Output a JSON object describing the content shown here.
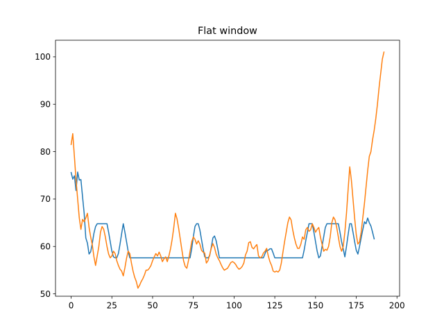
{
  "chart_data": {
    "type": "line",
    "title": "Flat window",
    "xlabel": "",
    "ylabel": "",
    "xlim": [
      -9.6,
      201.6
    ],
    "ylim": [
      49.5,
      103.5
    ],
    "xticks": [
      0,
      25,
      50,
      75,
      100,
      125,
      150,
      175,
      200
    ],
    "yticks": [
      50,
      60,
      70,
      80,
      90,
      100
    ],
    "grid": false,
    "legend": "none",
    "series": [
      {
        "color": "#1f77b4",
        "points": [
          [
            0,
            75.6
          ],
          [
            1,
            74.2
          ],
          [
            2,
            74.9
          ],
          [
            3,
            71.8
          ],
          [
            4,
            75.7
          ],
          [
            5,
            74.0
          ],
          [
            6,
            74.1
          ],
          [
            7,
            70.5
          ],
          [
            8,
            67.0
          ],
          [
            9,
            61.8
          ],
          [
            10,
            60.7
          ],
          [
            11,
            58.4
          ],
          [
            12,
            58.9
          ],
          [
            13,
            60.7
          ],
          [
            14,
            62.8
          ],
          [
            15,
            64.2
          ],
          [
            16,
            64.8
          ],
          [
            17,
            64.8
          ],
          [
            18,
            64.8
          ],
          [
            19,
            64.8
          ],
          [
            20,
            64.8
          ],
          [
            21,
            64.8
          ],
          [
            22,
            64.8
          ],
          [
            23,
            63.0
          ],
          [
            24,
            61.0
          ],
          [
            25,
            59.0
          ],
          [
            26,
            57.8
          ],
          [
            27,
            57.6
          ],
          [
            28,
            57.6
          ],
          [
            29,
            58.5
          ],
          [
            30,
            60.5
          ],
          [
            31,
            62.7
          ],
          [
            32,
            64.8
          ],
          [
            33,
            63.0
          ],
          [
            34,
            61.0
          ],
          [
            35,
            59.0
          ],
          [
            36,
            57.6
          ],
          [
            40,
            57.6
          ],
          [
            45,
            57.6
          ],
          [
            50,
            57.6
          ],
          [
            55,
            57.6
          ],
          [
            60,
            57.6
          ],
          [
            65,
            57.6
          ],
          [
            70,
            57.6
          ],
          [
            73,
            57.6
          ],
          [
            74,
            59.5
          ],
          [
            75,
            62.0
          ],
          [
            76,
            64.2
          ],
          [
            77,
            64.8
          ],
          [
            78,
            64.8
          ],
          [
            79,
            63.5
          ],
          [
            80,
            61.5
          ],
          [
            81,
            59.5
          ],
          [
            82,
            57.8
          ],
          [
            83,
            57.6
          ],
          [
            84,
            57.6
          ],
          [
            85,
            58.0
          ],
          [
            86,
            59.8
          ],
          [
            87,
            61.8
          ],
          [
            88,
            62.2
          ],
          [
            89,
            61.2
          ],
          [
            90,
            59.5
          ],
          [
            91,
            57.6
          ],
          [
            95,
            57.6
          ],
          [
            100,
            57.6
          ],
          [
            105,
            57.6
          ],
          [
            110,
            57.6
          ],
          [
            115,
            57.6
          ],
          [
            118,
            57.6
          ],
          [
            119,
            58.5
          ],
          [
            120,
            59.2
          ],
          [
            121,
            59.2
          ],
          [
            122,
            59.5
          ],
          [
            123,
            59.5
          ],
          [
            124,
            58.6
          ],
          [
            125,
            57.6
          ],
          [
            130,
            57.6
          ],
          [
            135,
            57.6
          ],
          [
            140,
            57.6
          ],
          [
            142,
            57.6
          ],
          [
            143,
            59.2
          ],
          [
            144,
            61.2
          ],
          [
            145,
            63.0
          ],
          [
            146,
            64.8
          ],
          [
            147,
            64.8
          ],
          [
            148,
            64.8
          ],
          [
            149,
            63.0
          ],
          [
            150,
            61.0
          ],
          [
            151,
            59.0
          ],
          [
            152,
            57.6
          ],
          [
            153,
            58.0
          ],
          [
            154,
            60.0
          ],
          [
            155,
            62.0
          ],
          [
            156,
            64.0
          ],
          [
            157,
            64.8
          ],
          [
            158,
            64.8
          ],
          [
            159,
            64.8
          ],
          [
            160,
            64.8
          ],
          [
            161,
            64.8
          ],
          [
            162,
            64.8
          ],
          [
            163,
            64.8
          ],
          [
            164,
            64.8
          ],
          [
            165,
            63.0
          ],
          [
            166,
            61.0
          ],
          [
            167,
            59.5
          ],
          [
            168,
            57.8
          ],
          [
            169,
            60.0
          ],
          [
            170,
            62.5
          ],
          [
            171,
            64.8
          ],
          [
            172,
            64.8
          ],
          [
            173,
            63.0
          ],
          [
            174,
            61.0
          ],
          [
            175,
            59.2
          ],
          [
            176,
            58.4
          ],
          [
            177,
            60.0
          ],
          [
            178,
            61.8
          ],
          [
            179,
            63.5
          ],
          [
            180,
            65.2
          ],
          [
            181,
            64.8
          ],
          [
            182,
            66.0
          ],
          [
            183,
            65.0
          ],
          [
            184,
            64.3
          ],
          [
            185,
            63.0
          ],
          [
            186,
            61.6
          ]
        ]
      },
      {
        "color": "#ff7f0e",
        "points": [
          [
            0,
            81.5
          ],
          [
            1,
            83.8
          ],
          [
            2,
            79.0
          ],
          [
            3,
            74.0
          ],
          [
            4,
            70.0
          ],
          [
            5,
            66.0
          ],
          [
            6,
            63.6
          ],
          [
            7,
            65.7
          ],
          [
            8,
            65.2
          ],
          [
            9,
            66.0
          ],
          [
            10,
            67.0
          ],
          [
            11,
            64.0
          ],
          [
            12,
            62.0
          ],
          [
            13,
            60.3
          ],
          [
            14,
            57.8
          ],
          [
            15,
            56.0
          ],
          [
            16,
            58.0
          ],
          [
            17,
            60.0
          ],
          [
            18,
            63.0
          ],
          [
            19,
            64.2
          ],
          [
            20,
            63.6
          ],
          [
            21,
            62.0
          ],
          [
            22,
            60.0
          ],
          [
            23,
            58.4
          ],
          [
            24,
            57.6
          ],
          [
            25,
            58.0
          ],
          [
            26,
            59.0
          ],
          [
            27,
            58.5
          ],
          [
            28,
            57.0
          ],
          [
            29,
            56.0
          ],
          [
            30,
            55.2
          ],
          [
            31,
            54.8
          ],
          [
            32,
            53.8
          ],
          [
            33,
            55.5
          ],
          [
            34,
            57.5
          ],
          [
            35,
            59.0
          ],
          [
            36,
            58.5
          ],
          [
            37,
            56.5
          ],
          [
            38,
            54.8
          ],
          [
            39,
            53.5
          ],
          [
            40,
            52.6
          ],
          [
            41,
            51.2
          ],
          [
            42,
            51.8
          ],
          [
            43,
            52.6
          ],
          [
            44,
            53.2
          ],
          [
            45,
            54.0
          ],
          [
            46,
            55.0
          ],
          [
            47,
            55.0
          ],
          [
            48,
            55.4
          ],
          [
            49,
            56.0
          ],
          [
            50,
            57.0
          ],
          [
            51,
            57.8
          ],
          [
            52,
            58.5
          ],
          [
            53,
            58.0
          ],
          [
            54,
            58.8
          ],
          [
            55,
            58.0
          ],
          [
            56,
            56.8
          ],
          [
            57,
            57.4
          ],
          [
            58,
            57.8
          ],
          [
            59,
            56.8
          ],
          [
            60,
            58.0
          ],
          [
            61,
            59.5
          ],
          [
            62,
            61.5
          ],
          [
            63,
            64.0
          ],
          [
            64,
            67.0
          ],
          [
            65,
            65.8
          ],
          [
            66,
            63.8
          ],
          [
            67,
            61.5
          ],
          [
            68,
            59.2
          ],
          [
            69,
            57.0
          ],
          [
            70,
            55.8
          ],
          [
            71,
            55.4
          ],
          [
            72,
            57.0
          ],
          [
            73,
            59.0
          ],
          [
            74,
            61.0
          ],
          [
            75,
            62.0
          ],
          [
            76,
            61.5
          ],
          [
            77,
            60.5
          ],
          [
            78,
            61.2
          ],
          [
            79,
            60.5
          ],
          [
            80,
            59.2
          ],
          [
            81,
            58.8
          ],
          [
            82,
            58.6
          ],
          [
            83,
            56.5
          ],
          [
            84,
            57.0
          ],
          [
            85,
            58.2
          ],
          [
            86,
            59.6
          ],
          [
            87,
            60.6
          ],
          [
            88,
            59.8
          ],
          [
            89,
            58.4
          ],
          [
            90,
            57.6
          ],
          [
            91,
            57.0
          ],
          [
            92,
            56.2
          ],
          [
            93,
            55.5
          ],
          [
            94,
            55.0
          ],
          [
            95,
            55.2
          ],
          [
            96,
            55.4
          ],
          [
            97,
            56.0
          ],
          [
            98,
            56.6
          ],
          [
            99,
            56.8
          ],
          [
            100,
            56.6
          ],
          [
            101,
            56.2
          ],
          [
            102,
            55.6
          ],
          [
            103,
            55.2
          ],
          [
            104,
            55.4
          ],
          [
            105,
            55.8
          ],
          [
            106,
            56.5
          ],
          [
            107,
            58.2
          ],
          [
            108,
            59.0
          ],
          [
            109,
            60.8
          ],
          [
            110,
            61.0
          ],
          [
            111,
            59.8
          ],
          [
            112,
            59.5
          ],
          [
            113,
            60.0
          ],
          [
            114,
            60.4
          ],
          [
            115,
            58.0
          ],
          [
            116,
            57.6
          ],
          [
            117,
            57.8
          ],
          [
            118,
            58.6
          ],
          [
            119,
            59.0
          ],
          [
            120,
            59.6
          ],
          [
            121,
            58.0
          ],
          [
            122,
            56.8
          ],
          [
            123,
            56.0
          ],
          [
            124,
            54.8
          ],
          [
            125,
            54.6
          ],
          [
            126,
            54.8
          ],
          [
            127,
            54.6
          ],
          [
            128,
            55.0
          ],
          [
            129,
            56.5
          ],
          [
            130,
            58.8
          ],
          [
            131,
            61.0
          ],
          [
            132,
            63.0
          ],
          [
            133,
            65.0
          ],
          [
            134,
            66.2
          ],
          [
            135,
            65.6
          ],
          [
            136,
            63.5
          ],
          [
            137,
            61.8
          ],
          [
            138,
            60.5
          ],
          [
            139,
            59.6
          ],
          [
            140,
            59.6
          ],
          [
            141,
            60.5
          ],
          [
            142,
            62.0
          ],
          [
            143,
            61.5
          ],
          [
            144,
            63.5
          ],
          [
            145,
            64.0
          ],
          [
            146,
            63.2
          ],
          [
            147,
            63.5
          ],
          [
            148,
            64.8
          ],
          [
            149,
            64.0
          ],
          [
            150,
            63.0
          ],
          [
            151,
            63.6
          ],
          [
            152,
            64.0
          ],
          [
            153,
            62.0
          ],
          [
            154,
            60.5
          ],
          [
            155,
            59.0
          ],
          [
            156,
            59.4
          ],
          [
            157,
            59.2
          ],
          [
            158,
            60.0
          ],
          [
            159,
            62.0
          ],
          [
            160,
            65.0
          ],
          [
            161,
            66.2
          ],
          [
            162,
            65.6
          ],
          [
            163,
            64.0
          ],
          [
            164,
            62.0
          ],
          [
            165,
            60.0
          ],
          [
            166,
            59.0
          ],
          [
            167,
            60.0
          ],
          [
            168,
            63.0
          ],
          [
            169,
            67.0
          ],
          [
            170,
            72.0
          ],
          [
            171,
            76.8
          ],
          [
            172,
            74.0
          ],
          [
            173,
            70.0
          ],
          [
            174,
            66.0
          ],
          [
            175,
            62.5
          ],
          [
            176,
            60.5
          ],
          [
            177,
            61.0
          ],
          [
            178,
            63.0
          ],
          [
            179,
            66.0
          ],
          [
            180,
            69.0
          ],
          [
            181,
            72.5
          ],
          [
            182,
            76.0
          ],
          [
            183,
            79.0
          ],
          [
            184,
            80.0
          ],
          [
            185,
            82.5
          ],
          [
            186,
            84.5
          ],
          [
            187,
            87.0
          ],
          [
            188,
            90.0
          ],
          [
            189,
            93.5
          ],
          [
            190,
            96.5
          ],
          [
            191,
            99.5
          ],
          [
            192,
            101.0
          ]
        ]
      }
    ]
  }
}
